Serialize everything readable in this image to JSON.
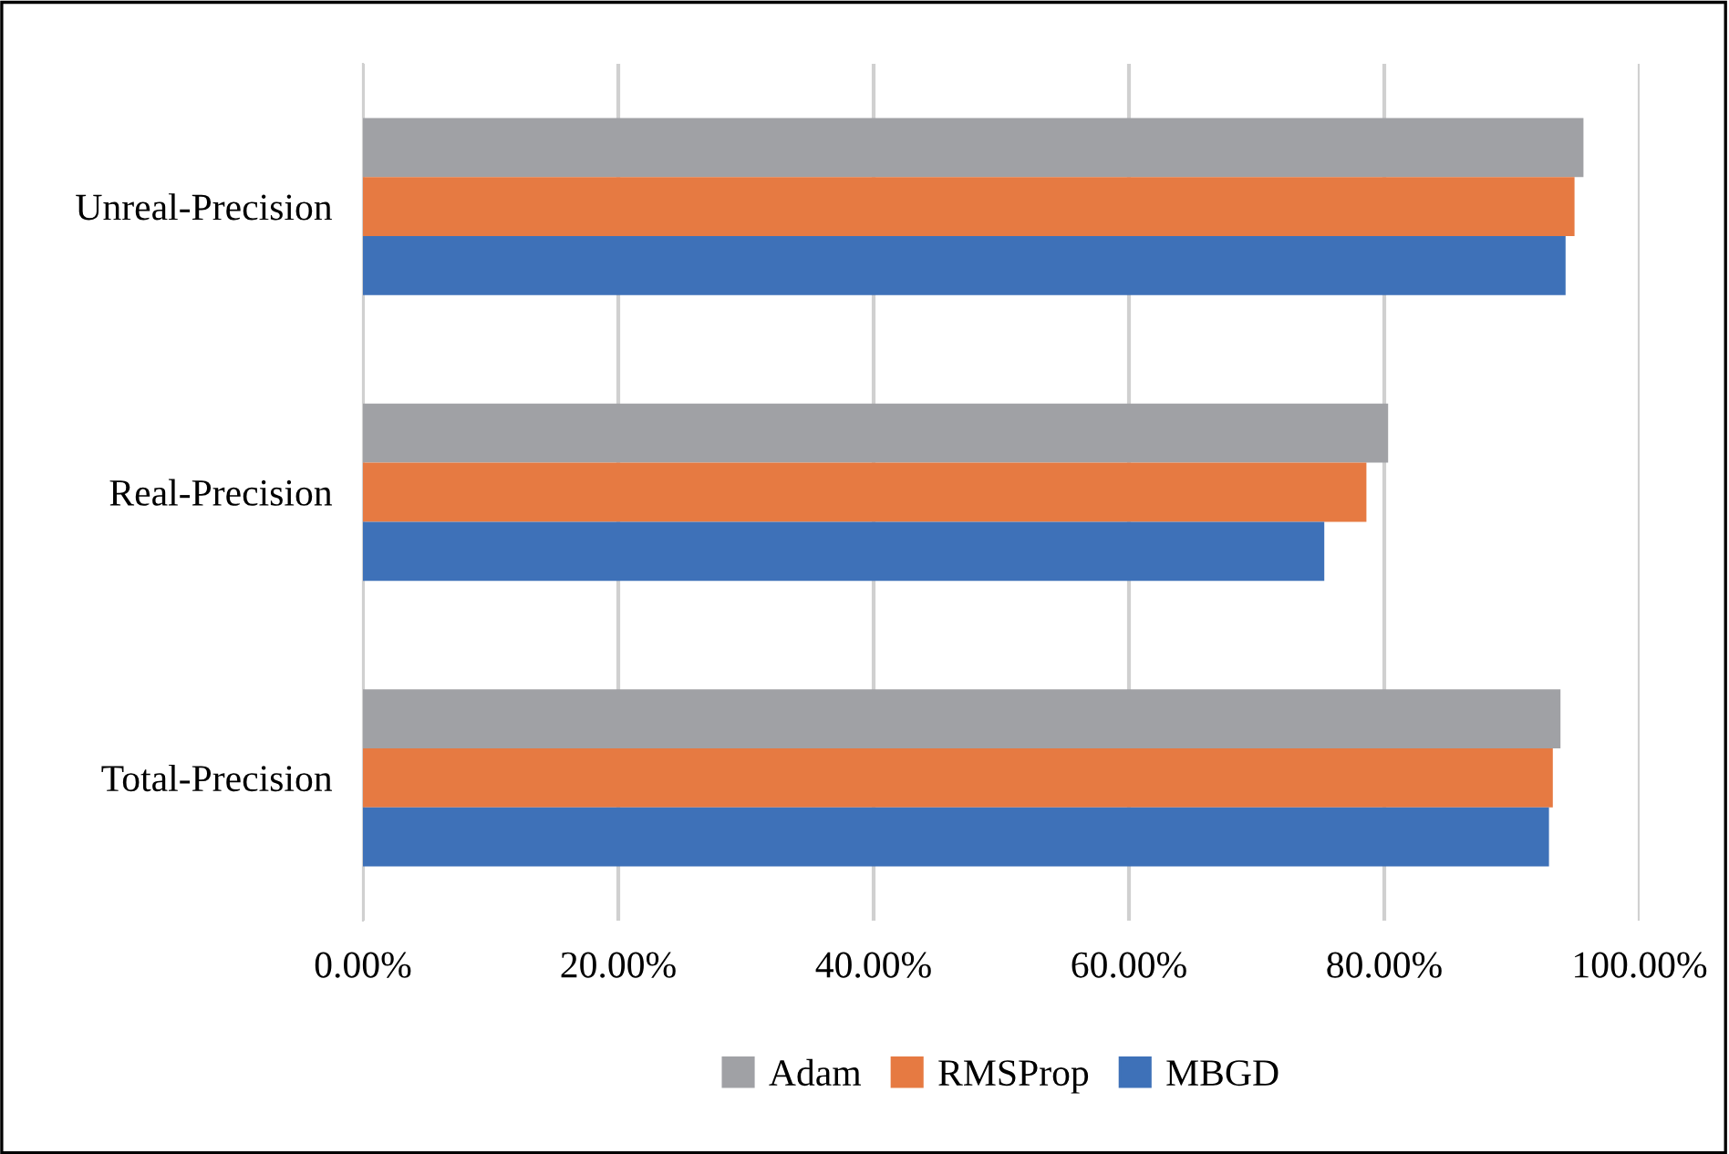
{
  "chart_data": {
    "type": "bar",
    "orientation": "horizontal",
    "categories": [
      "Unreal-Precision",
      "Real-Precision",
      "Total-Precision"
    ],
    "series": [
      {
        "name": "Adam",
        "color": "#a0a1a5",
        "values": [
          95.6,
          80.3,
          93.8
        ]
      },
      {
        "name": "RMSProp",
        "color": "#e67a42",
        "values": [
          94.9,
          78.6,
          93.2
        ]
      },
      {
        "name": "MBGD",
        "color": "#3e71b8",
        "values": [
          94.2,
          75.3,
          92.9
        ]
      }
    ],
    "xlim": [
      0,
      100
    ],
    "xticks": [
      {
        "value": 0,
        "label": "0.00%"
      },
      {
        "value": 20,
        "label": "20.00%"
      },
      {
        "value": 40,
        "label": "40.00%"
      },
      {
        "value": 60,
        "label": "60.00%"
      },
      {
        "value": 80,
        "label": "80.00%"
      },
      {
        "value": 100,
        "label": "100.00%"
      }
    ],
    "grid": "x",
    "legend": "bottom"
  }
}
